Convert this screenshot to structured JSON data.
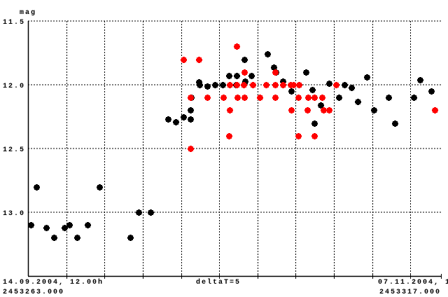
{
  "chart_data": {
    "type": "scatter",
    "ylabel": "mag",
    "y_inverted": true,
    "ylim": [
      11.5,
      13.5
    ],
    "yticks": [
      {
        "value": 11.5,
        "label": "11.5"
      },
      {
        "value": 12.0,
        "label": "12.0"
      },
      {
        "value": 12.5,
        "label": "12.5"
      },
      {
        "value": 13.0,
        "label": "13.0"
      }
    ],
    "xlim": [
      2453263.0,
      2453317.0
    ],
    "x_grid_step_days": 5,
    "grid": true,
    "x_start_label": "14.09.2004, 12.00h",
    "x_start_jd": "2453263.000",
    "x_step_label": "deltaT=5",
    "x_end_label": "07.11.2004, 1",
    "x_end_jd": "2453317.000",
    "series": [
      {
        "color": "#000000",
        "points": [
          [
            2453263.4,
            13.1
          ],
          [
            2453264.1,
            12.8
          ],
          [
            2453265.4,
            13.12
          ],
          [
            2453266.4,
            13.2
          ],
          [
            2453267.8,
            13.12
          ],
          [
            2453268.4,
            13.1
          ],
          [
            2453269.4,
            13.2
          ],
          [
            2453270.8,
            13.1
          ],
          [
            2453272.3,
            12.8
          ],
          [
            2453276.4,
            13.2
          ],
          [
            2453277.5,
            13.0
          ],
          [
            2453279.0,
            13.0
          ],
          [
            2453281.3,
            12.27
          ],
          [
            2453282.3,
            12.29
          ],
          [
            2453283.3,
            12.25
          ],
          [
            2453284.2,
            12.2
          ],
          [
            2453284.2,
            12.27
          ],
          [
            2453284.3,
            12.1
          ],
          [
            2453285.3,
            11.98
          ],
          [
            2453285.4,
            12.0
          ],
          [
            2453286.4,
            12.01
          ],
          [
            2453287.4,
            12.0
          ],
          [
            2453288.4,
            12.0
          ],
          [
            2453289.3,
            11.93
          ],
          [
            2453290.3,
            11.93
          ],
          [
            2453290.2,
            12.0
          ],
          [
            2453291.3,
            11.8
          ],
          [
            2453291.4,
            11.97
          ],
          [
            2453292.2,
            11.93
          ],
          [
            2453294.3,
            11.76
          ],
          [
            2453295.1,
            11.86
          ],
          [
            2453295.4,
            11.9
          ],
          [
            2453296.3,
            11.97
          ],
          [
            2453297.4,
            12.05
          ],
          [
            2453299.3,
            11.9
          ],
          [
            2453300.2,
            12.04
          ],
          [
            2453300.4,
            12.3
          ],
          [
            2453301.3,
            12.16
          ],
          [
            2453302.4,
            11.99
          ],
          [
            2453303.6,
            12.1
          ],
          [
            2453304.4,
            12.0
          ],
          [
            2453305.3,
            12.02
          ],
          [
            2453306.1,
            12.13
          ],
          [
            2453307.3,
            11.94
          ],
          [
            2453308.2,
            12.2
          ],
          [
            2453310.1,
            12.1
          ],
          [
            2453311.0,
            12.3
          ],
          [
            2453313.4,
            12.1
          ],
          [
            2453314.3,
            11.96
          ],
          [
            2453315.7,
            12.05
          ]
        ]
      },
      {
        "color": "#ff0000",
        "points": [
          [
            2453283.3,
            11.8
          ],
          [
            2453285.3,
            11.8
          ],
          [
            2453284.2,
            12.1
          ],
          [
            2453286.4,
            12.1
          ],
          [
            2453288.5,
            12.1
          ],
          [
            2453284.2,
            12.5
          ],
          [
            2453290.3,
            11.7
          ],
          [
            2453291.3,
            11.9
          ],
          [
            2453289.4,
            12.0
          ],
          [
            2453290.3,
            12.0
          ],
          [
            2453291.2,
            12.0
          ],
          [
            2453292.4,
            12.0
          ],
          [
            2453294.1,
            12.0
          ],
          [
            2453295.3,
            12.0
          ],
          [
            2453296.3,
            12.0
          ],
          [
            2453297.3,
            12.0
          ],
          [
            2453297.7,
            12.0
          ],
          [
            2453298.4,
            12.0
          ],
          [
            2453303.3,
            12.0
          ],
          [
            2453295.3,
            11.9
          ],
          [
            2453290.4,
            12.1
          ],
          [
            2453291.3,
            12.1
          ],
          [
            2453293.3,
            12.1
          ],
          [
            2453295.3,
            12.1
          ],
          [
            2453298.3,
            12.1
          ],
          [
            2453299.6,
            12.1
          ],
          [
            2453300.4,
            12.1
          ],
          [
            2453301.4,
            12.1
          ],
          [
            2453289.4,
            12.2
          ],
          [
            2453297.4,
            12.2
          ],
          [
            2453299.5,
            12.2
          ],
          [
            2453301.6,
            12.2
          ],
          [
            2453302.4,
            12.2
          ],
          [
            2453289.3,
            12.4
          ],
          [
            2453298.3,
            12.4
          ],
          [
            2453300.4,
            12.4
          ],
          [
            2453316.2,
            12.2
          ]
        ]
      }
    ]
  }
}
